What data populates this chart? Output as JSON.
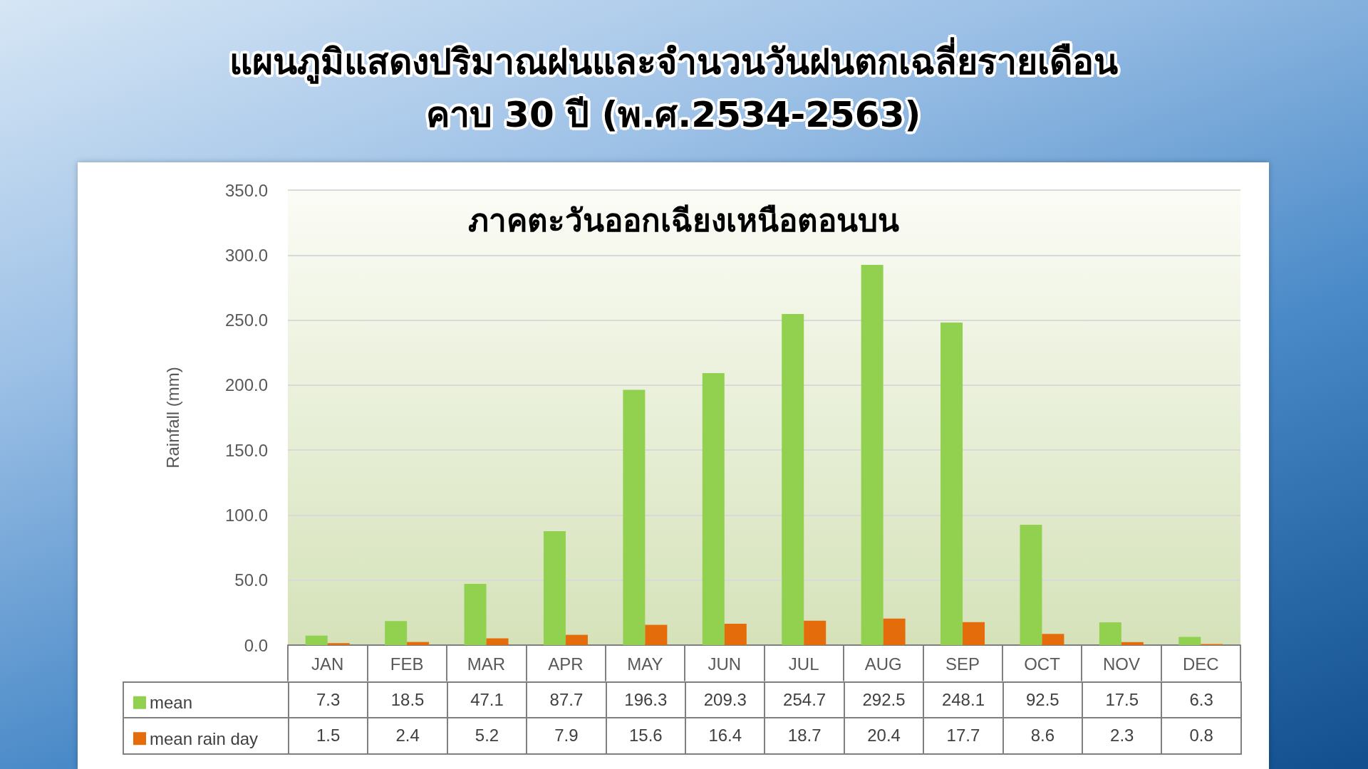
{
  "chart_data": {
    "type": "bar",
    "title": "แผนภูมิแสดงปริมาณฝนและจำนวนวันฝนตกเฉลี่ยรายเดือน\nคาบ 30 ปี (พ.ศ.2534-2563)",
    "subtitle": "ภาคตะวันออกเฉียงเหนือตอนบน",
    "ylabel": "Rainfall (mm)",
    "categories": [
      "JAN",
      "FEB",
      "MAR",
      "APR",
      "MAY",
      "JUN",
      "JUL",
      "AUG",
      "SEP",
      "OCT",
      "NOV",
      "DEC"
    ],
    "series": [
      {
        "name": "mean",
        "color": "#92d050",
        "values": [
          7.3,
          18.5,
          47.1,
          87.7,
          196.3,
          209.3,
          254.7,
          292.5,
          248.1,
          92.5,
          17.5,
          6.3
        ]
      },
      {
        "name": "mean rain day",
        "color": "#e46c0a",
        "values": [
          1.5,
          2.4,
          5.2,
          7.9,
          15.6,
          16.4,
          18.7,
          20.4,
          17.7,
          8.6,
          2.3,
          0.8
        ]
      }
    ],
    "ylim": [
      0,
      350
    ],
    "yticks": [
      {
        "value": 0,
        "label": "0.0"
      },
      {
        "value": 50,
        "label": "50.0"
      },
      {
        "value": 100,
        "label": "100.0"
      },
      {
        "value": 150,
        "label": "150.0"
      },
      {
        "value": 200,
        "label": "200.0"
      },
      {
        "value": 250,
        "label": "250.0"
      },
      {
        "value": 300,
        "label": "300.0"
      },
      {
        "value": 350,
        "label": "350.0"
      }
    ],
    "grid": "y",
    "legend": "bottom left",
    "data_labels": true
  }
}
